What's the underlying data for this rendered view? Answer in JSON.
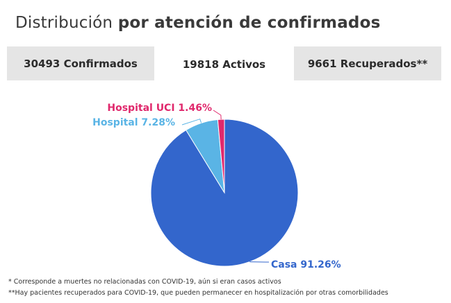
{
  "title": {
    "light": "Distribución",
    "bold": "por atención de confirmados"
  },
  "tabs": [
    {
      "label": "30493 Confirmados",
      "active": false
    },
    {
      "label": "19818 Activos",
      "active": true
    },
    {
      "label": "9661 Recuperados**",
      "active": false
    }
  ],
  "chart_data": {
    "type": "pie",
    "slices": [
      {
        "label": "Casa 91.26%",
        "value": 91.26,
        "color": "#3366cc"
      },
      {
        "label": "Hospital 7.28%",
        "value": 7.28,
        "color": "#5ab4e5"
      },
      {
        "label": "Hospital UCI 1.46%",
        "value": 1.46,
        "color": "#e0286c"
      }
    ]
  },
  "footnotes": [
    "* Corresponde a muertes no relacionadas con COVID-19, aún si eran casos activos",
    "**Hay pacientes recuperados para COVID-19, que pueden permanecer en hospitalización por otras comorbilidades"
  ]
}
